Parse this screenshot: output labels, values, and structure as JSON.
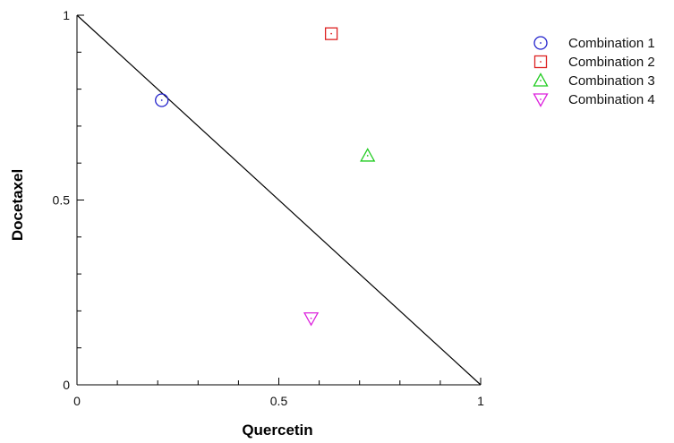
{
  "chart_data": {
    "type": "scatter",
    "title": "",
    "xlabel": "Quercetin",
    "ylabel": "Docetaxel",
    "xlim": [
      0,
      1
    ],
    "ylim": [
      0,
      1
    ],
    "x_ticks": [
      "0",
      "0.5",
      "1"
    ],
    "y_ticks": [
      "0",
      "0.5",
      "1"
    ],
    "grid": false,
    "legend_position": "right",
    "reference_line": {
      "from": [
        0,
        1
      ],
      "to": [
        1,
        0
      ],
      "color": "#000000"
    },
    "series": [
      {
        "name": "Combination 1",
        "marker": "circle",
        "color": "#2222cc",
        "x": 0.21,
        "y": 0.77
      },
      {
        "name": "Combination 2",
        "marker": "square",
        "color": "#dd2222",
        "x": 0.63,
        "y": 0.95
      },
      {
        "name": "Combination 3",
        "marker": "triangle-up",
        "color": "#22cc22",
        "x": 0.72,
        "y": 0.62
      },
      {
        "name": "Combination 4",
        "marker": "triangle-down",
        "color": "#dd22dd",
        "x": 0.58,
        "y": 0.18
      }
    ]
  }
}
